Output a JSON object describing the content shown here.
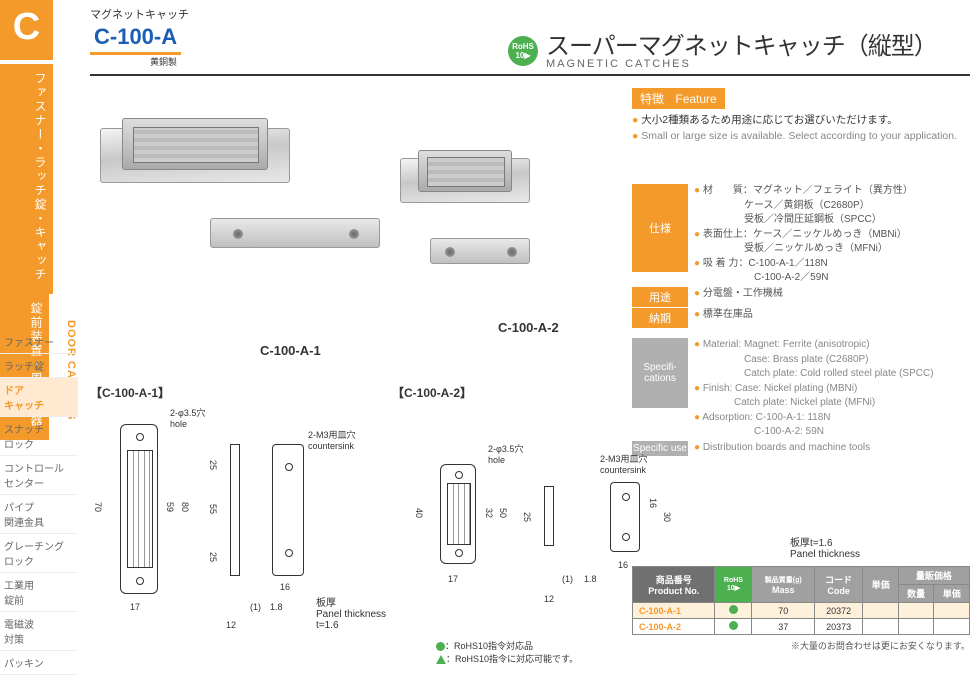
{
  "sidebar": {
    "letter": "C",
    "cat_lines": [
      "ファスナー・ラッチ錠・キャッチ",
      "錠前装置・周辺機器"
    ],
    "en_label": "DOOR CATCHES",
    "items": [
      {
        "label": "ファスナー"
      },
      {
        "label": "ラッチ錠"
      },
      {
        "label": "ドア\nキャッチ"
      },
      {
        "label": "スナッチ\nロック"
      },
      {
        "label": "コントロール\nセンター"
      },
      {
        "label": "パイプ\n関連金具"
      },
      {
        "label": "グレーチング\nロック"
      },
      {
        "label": "工業用\n錠前"
      },
      {
        "label": "電磁波\n対策"
      },
      {
        "label": "パッキン"
      }
    ],
    "active_index": 2
  },
  "header": {
    "small": "マグネットキャッチ",
    "code": "C-100-A",
    "material": "黄銅製",
    "title_jp": "スーパーマグネットキャッチ（縦型）",
    "title_en": "MAGNETIC CATCHES",
    "rohs": "RoHS\n10▶"
  },
  "feature": {
    "hdr_jp": "特徴",
    "hdr_en": "Feature",
    "jp": "大小2種類あるため用途に応じてお選びいただけます。",
    "en": "Small or large size is available. Select according to your application."
  },
  "spec_jp": {
    "label_spec": "仕様",
    "label_use": "用途",
    "label_delivery": "納期",
    "material": "材　　質：マグネット／フェライト（異方性）\n　　　　　ケース／黄銅板（C2680P）\n　　　　　受板／冷間圧延鋼板（SPCC）",
    "finish": "表面仕上：ケース／ニッケルめっき（MBNi）\n　　　　　受板／ニッケルめっき（MFNi）",
    "adsorption": "吸 着 力：C-100-A-1／118N\n　　　　　　C-100-A-2／59N",
    "use": "分電盤・工作機械",
    "delivery": "標準在庫品"
  },
  "spec_en": {
    "label_spec": "Specifi-\ncations",
    "label_use": "Specific use",
    "material": "Material: Magnet: Ferrite (anisotropic)\n　　　　　Case: Brass plate (C2680P)\n　　　　　Catch plate: Cold rolled steel plate (SPCC)",
    "finish": "Finish: Case: Nickel plating (MBNi)\n　　　　Catch plate: Nickel plate (MFNi)",
    "adsorption": "Adsorption: C-100-A-1: 118N\n　　　　　　C-100-A-2: 59N",
    "use": "Distribution boards and machine tools"
  },
  "photos": {
    "label1": "C-100-A-1",
    "label2": "C-100-A-2"
  },
  "drawings": {
    "title1": "【C-100-A-1】",
    "title2": "【C-100-A-2】",
    "note_hole": "2-φ3.5穴\nhole",
    "note_csk": "2-M3用皿穴\ncountersink",
    "panel_thick": "板厚\nPanel thickness\nt=1.6",
    "panel_thick2": "板厚t=1.6\nPanel thickness",
    "dims1": {
      "h": "70",
      "h2": "59",
      "h3": "80",
      "w": "17",
      "sw": "12",
      "swo": "(1)",
      "st": "1.8",
      "s_h": "25",
      "s_h2": "55",
      "s_h3": "25",
      "s_w": "16"
    },
    "dims2": {
      "h": "40",
      "h2": "32",
      "h3": "50",
      "w": "17",
      "sw": "12",
      "swo": "(1)",
      "st": "1.8",
      "s_h": "25",
      "s_h2": "16",
      "s_h3": "30",
      "s_w": "16"
    }
  },
  "rohs_legend": {
    "dot": "：RoHS10指令対応品",
    "tri": "：RoHS10指令に対応可能です。"
  },
  "table": {
    "headers": {
      "product_jp": "商品番号",
      "product_en": "Product No.",
      "rohs": "RoHS\n10▶",
      "mass_jp": "製品質量(g)",
      "mass_en": "Mass",
      "code_jp": "コード",
      "code_en": "Code",
      "price": "単価",
      "bulk": "量販価格",
      "qty": "数量",
      "bprice": "単価"
    },
    "rows": [
      {
        "product": "C-100-A-1",
        "rohs": true,
        "mass": "70",
        "code": "20372"
      },
      {
        "product": "C-100-A-2",
        "rohs": true,
        "mass": "37",
        "code": "20373"
      }
    ],
    "note": "※大量のお問合わせは更にお安くなります。"
  },
  "colors": {
    "orange": "#f39a2a",
    "blue": "#1a5fb4",
    "green": "#4CAF50",
    "gray": "#a0a0a0"
  }
}
